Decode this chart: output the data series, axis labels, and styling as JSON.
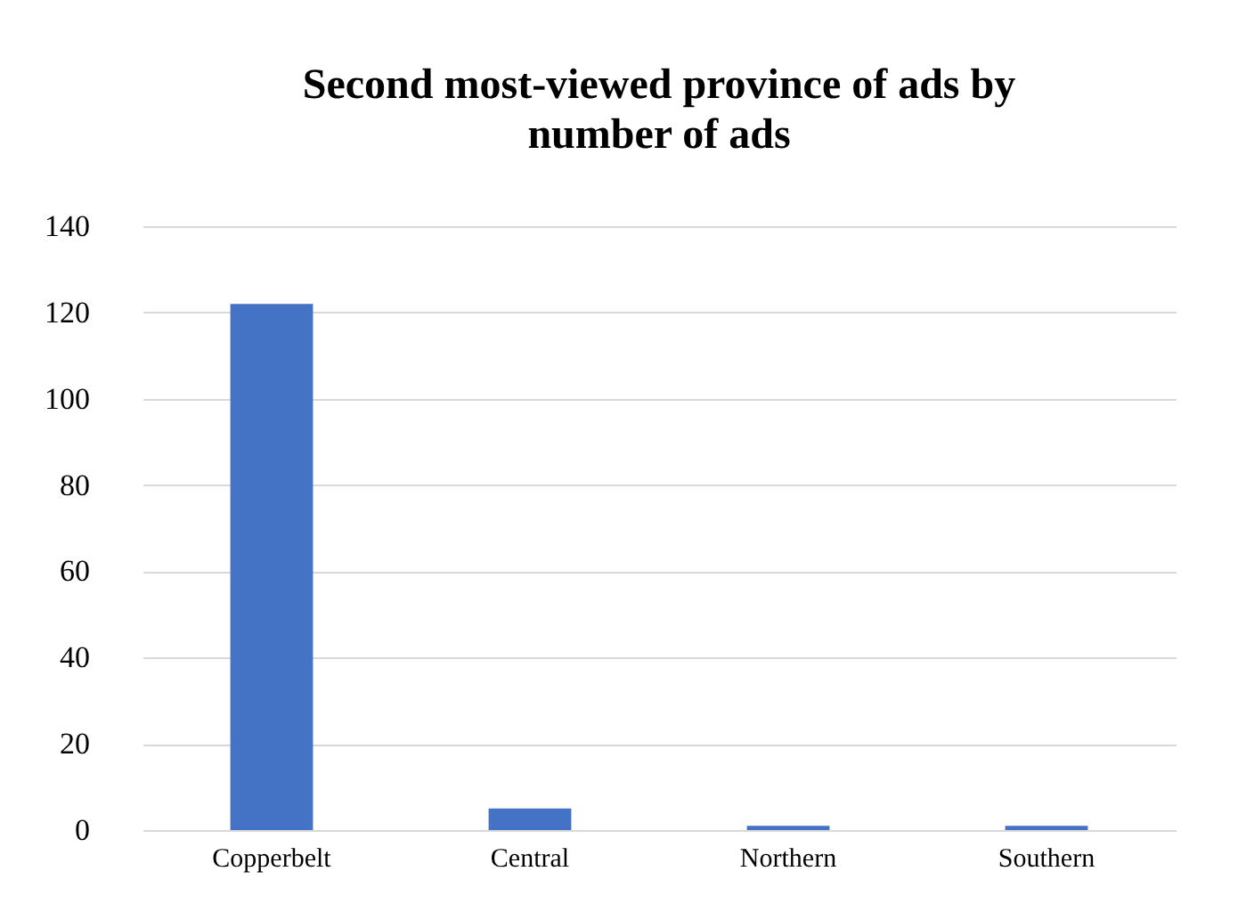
{
  "chart_data": {
    "type": "bar",
    "title": "Second most-viewed province of ads by number of ads",
    "categories": [
      "Copperbelt",
      "Central",
      "Northern",
      "Southern"
    ],
    "values": [
      122,
      5,
      1,
      1
    ],
    "color": "#4472c4",
    "ylim": [
      0,
      140
    ],
    "yticks": [
      0,
      20,
      40,
      60,
      80,
      100,
      120,
      140
    ],
    "grid": "y"
  }
}
